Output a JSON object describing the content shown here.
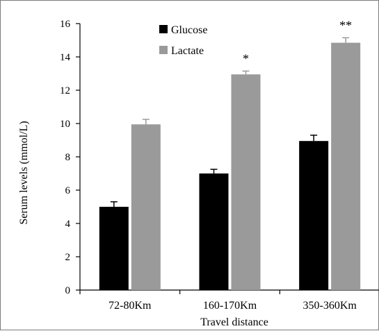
{
  "chart_data": {
    "type": "bar",
    "title": "",
    "xlabel": "Travel distance",
    "ylabel": "Serum levels (mmol/L)",
    "categories": [
      "72-80Km",
      "160-170Km",
      "350-360Km"
    ],
    "ylim": [
      0,
      16
    ],
    "yticks": [
      0,
      2,
      4,
      6,
      8,
      10,
      12,
      14,
      16
    ],
    "grid": false,
    "legend_position": "top-center",
    "series": [
      {
        "name": "Glucose",
        "color": "#000000",
        "values": [
          5.0,
          7.0,
          8.95
        ],
        "errors": [
          0.3,
          0.25,
          0.35
        ]
      },
      {
        "name": "Lactate",
        "color": "#9a9a9a",
        "values": [
          9.95,
          12.95,
          14.85
        ],
        "errors": [
          0.3,
          0.2,
          0.3
        ]
      }
    ],
    "annotations": [
      "",
      "*",
      "**"
    ]
  }
}
